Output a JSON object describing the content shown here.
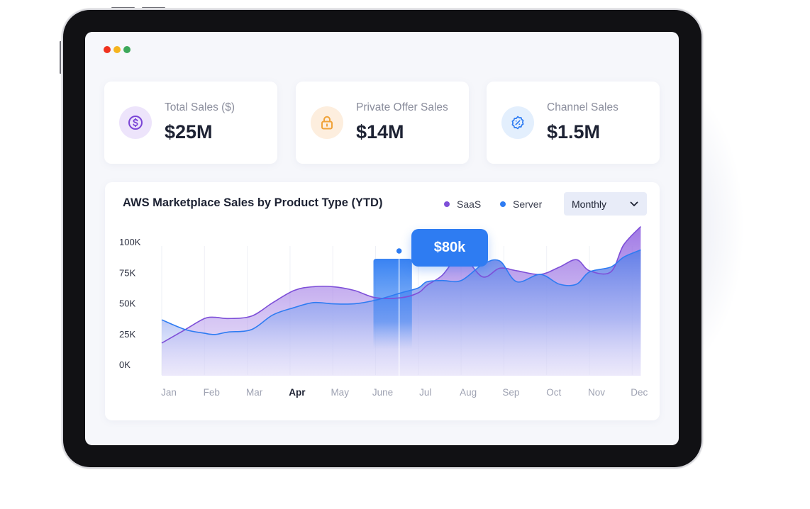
{
  "window": {
    "controls": [
      {
        "name": "close",
        "color": "#f0321e"
      },
      {
        "name": "minimize",
        "color": "#f5b41e"
      },
      {
        "name": "maximize",
        "color": "#3ca85a"
      }
    ]
  },
  "cards": [
    {
      "label": "Total Sales ($)",
      "value": "$25M",
      "icon": "dollar-icon",
      "icon_bg": "#ede4fb",
      "icon_color": "#7b45d6"
    },
    {
      "label": "Private Offer Sales",
      "value": "$14M",
      "icon": "lock-icon",
      "icon_bg": "#fdeede",
      "icon_color": "#f0a33a"
    },
    {
      "label": "Channel Sales",
      "value": "$1.5M",
      "icon": "discount-badge-icon",
      "icon_bg": "#e3effd",
      "icon_color": "#2e7cf2"
    }
  ],
  "chart": {
    "title": "AWS Marketplace Sales by Product Type (YTD)",
    "dropdown": {
      "selected": "Monthly"
    },
    "tooltip": {
      "value": "$80k",
      "month": "June"
    },
    "active_month": "Apr"
  },
  "chart_data": {
    "type": "area",
    "title": "AWS Marketplace Sales by Product Type (YTD)",
    "categories": [
      "Jan",
      "Feb",
      "Mar",
      "Apr",
      "May",
      "June",
      "Jul",
      "Aug",
      "Sep",
      "Oct",
      "Nov",
      "Dec"
    ],
    "y_ticks": [
      "100K",
      "75K",
      "50K",
      "25K",
      "0K"
    ],
    "ylim": [
      0,
      100
    ],
    "x": [
      0,
      0.55,
      1,
      1.25,
      1.55,
      2.1,
      2.6,
      3.1,
      3.55,
      4,
      4.5,
      5,
      5.6,
      6,
      6.2,
      6.55,
      7,
      7.5,
      7.9,
      8.3,
      8.85,
      9.3,
      9.7,
      10,
      10.5,
      10.8,
      11.2
    ],
    "series": [
      {
        "name": "SaaS",
        "color": "#7e4fd8",
        "values": [
          22,
          33,
          42,
          43,
          42,
          44,
          55,
          65,
          68,
          68,
          65,
          59,
          59,
          63,
          69,
          77,
          93,
          76,
          83,
          81,
          78,
          84,
          90,
          81,
          80,
          102,
          117
        ]
      },
      {
        "name": "Server",
        "color": "#2e7cf2",
        "values": [
          41,
          33,
          30,
          29,
          31,
          33,
          45,
          51,
          55,
          54,
          54,
          57,
          63,
          67,
          72,
          73,
          73,
          86,
          89,
          72,
          78,
          70,
          70,
          80,
          84,
          92,
          98
        ]
      }
    ],
    "highlight": {
      "x_start": 5,
      "x_end": 6,
      "y_top": 80,
      "label": "$80k"
    },
    "legend": "top-right"
  }
}
